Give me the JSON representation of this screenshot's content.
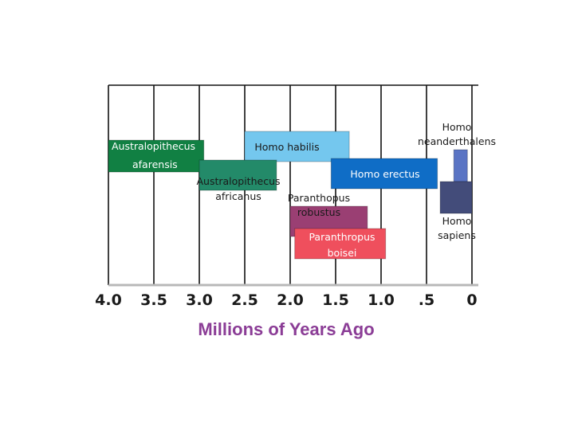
{
  "chart_data": {
    "type": "bar",
    "orientation": "horizontal-timeline",
    "xlabel": "Millions of Years Ago",
    "xlabel_color": "#8b3d96",
    "xlim": [
      4.0,
      -0.2
    ],
    "grid": true,
    "ticks": [
      {
        "value": 4.0,
        "label": "4.0"
      },
      {
        "value": 3.5,
        "label": "3.5"
      },
      {
        "value": 3.0,
        "label": "3.0"
      },
      {
        "value": 2.5,
        "label": "2.5"
      },
      {
        "value": 2.0,
        "label": "2.0"
      },
      {
        "value": 1.5,
        "label": "1.5"
      },
      {
        "value": 1.0,
        "label": "1.0"
      },
      {
        "value": 0.5,
        "label": ".5"
      },
      {
        "value": 0.0,
        "label": "0"
      }
    ],
    "species": [
      {
        "label": [
          "Australopithecus",
          "afarensis"
        ],
        "start": 4.0,
        "end": 2.95,
        "color": "#118043",
        "text_color": "light"
      },
      {
        "label": [
          "Homo habilis"
        ],
        "start": 2.5,
        "end": 1.35,
        "color": "#74c7ee",
        "text_color": "dark"
      },
      {
        "label": [
          "Australopithecus",
          "africanus"
        ],
        "start": 3.0,
        "end": 2.15,
        "color": "#238a69",
        "text_color": "light"
      },
      {
        "label": [
          "Homo erectus"
        ],
        "start": 1.55,
        "end": 0.38,
        "color": "#0f6dc6",
        "text_color": "light"
      },
      {
        "label": [
          "Paranthopus",
          "robustus"
        ],
        "start": 2.0,
        "end": 1.15,
        "color": "#9a3f73",
        "text_color": "dark"
      },
      {
        "label": [
          "Paranthropus",
          "boisei"
        ],
        "start": 1.95,
        "end": 0.95,
        "color": "#ef4f5d",
        "text_color": "light"
      },
      {
        "label": [
          "Homo",
          "neanderthalens"
        ],
        "start": 0.2,
        "end": 0.05,
        "color": "#5a74c4",
        "text_color": "dark"
      },
      {
        "label": [
          "Homo",
          "sapiens"
        ],
        "start": 0.35,
        "end": 0.0,
        "color": "#434c7a",
        "text_color": "dark"
      }
    ]
  }
}
